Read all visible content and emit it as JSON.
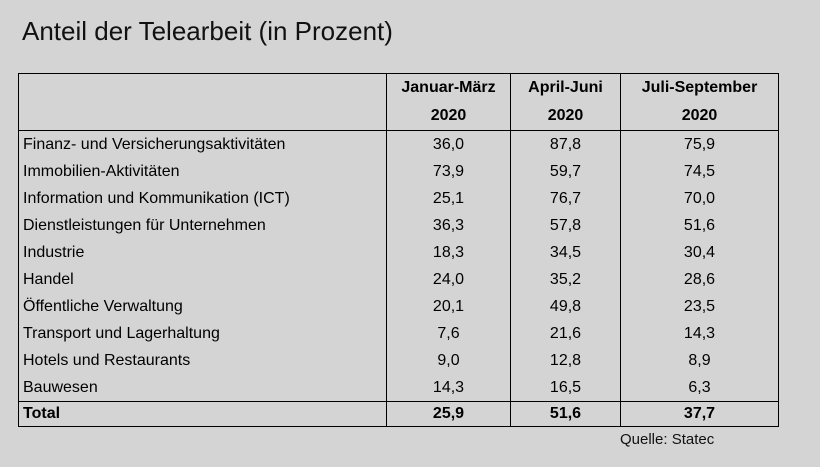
{
  "title": "Anteil der Telearbeit (in Prozent)",
  "table": {
    "header": [
      [
        "Januar-März",
        "2020"
      ],
      [
        "April-Juni",
        "2020"
      ],
      [
        "Juli-September",
        "2020"
      ]
    ],
    "rows": [
      [
        "Finanz- und Versicherungsaktivitäten",
        "36,0",
        "87,8",
        "75,9"
      ],
      [
        "Immobilien-Aktivitäten",
        "73,9",
        "59,7",
        "74,5"
      ],
      [
        "Information und Kommunikation (ICT)",
        "25,1",
        "76,7",
        "70,0"
      ],
      [
        "Dienstleistungen für Unternehmen",
        "36,3",
        "57,8",
        "51,6"
      ],
      [
        "Industrie",
        "18,3",
        "34,5",
        "30,4"
      ],
      [
        "Handel",
        "24,0",
        "35,2",
        "28,6"
      ],
      [
        "Öffentliche Verwaltung",
        "20,1",
        "49,8",
        "23,5"
      ],
      [
        "Transport und Lagerhaltung",
        "7,6",
        "21,6",
        "14,3"
      ],
      [
        "Hotels und Restaurants",
        "9,0",
        "12,8",
        "8,9"
      ],
      [
        "Bauwesen",
        "14,3",
        "16,5",
        "6,3"
      ]
    ],
    "total": [
      "Total",
      "25,9",
      "51,6",
      "37,7"
    ]
  },
  "source": "Quelle: Statec"
}
